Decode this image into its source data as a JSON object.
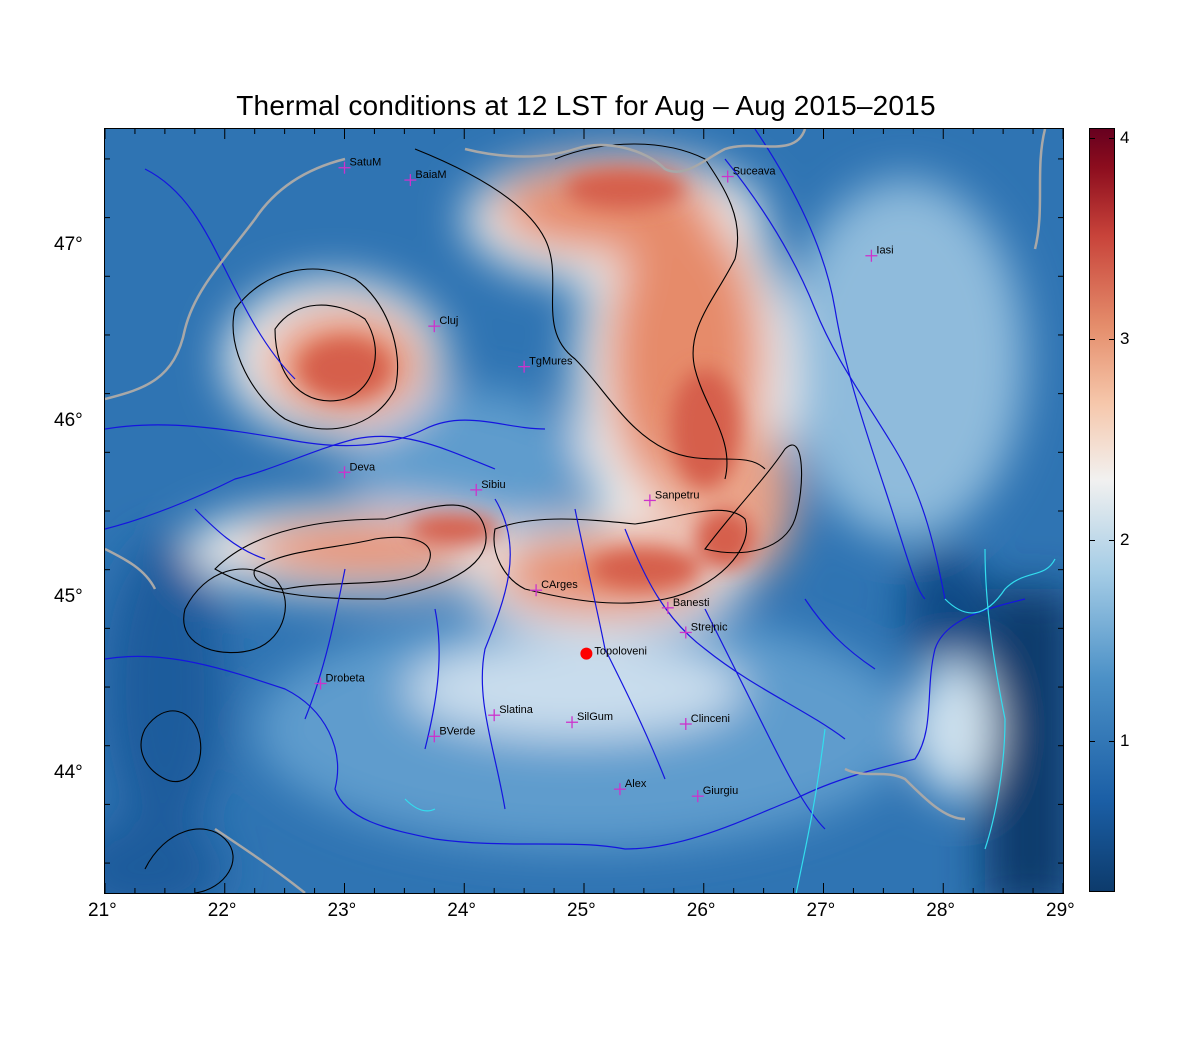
{
  "title": "Thermal conditions at 12 LST for Aug – Aug  2015–2015",
  "x_axis": {
    "labels": [
      "21°",
      "22°",
      "23°",
      "24°",
      "25°",
      "26°",
      "27°",
      "28°",
      "29°"
    ],
    "values": [
      21,
      22,
      23,
      24,
      25,
      26,
      27,
      28,
      29
    ],
    "range": [
      21,
      29
    ]
  },
  "y_axis": {
    "labels": [
      "44°",
      "45°",
      "46°",
      "47°"
    ],
    "values": [
      44,
      45,
      46,
      47
    ],
    "range": [
      43.33,
      47.67
    ]
  },
  "colorbar": {
    "labels": [
      "1",
      "2",
      "3",
      "4"
    ],
    "values": [
      1,
      2,
      3,
      4
    ],
    "range": [
      0.25,
      4.05
    ]
  },
  "colors": {
    "cold": "#1b5fa6",
    "mid": "#f2f1f0",
    "warm": "#e58e6c",
    "hot": "#8c0d1e",
    "station_marker": "#cc33cc",
    "highlight_site": "#ff0000",
    "rivers": "#1515e0",
    "borders": "#a8a8a8",
    "coast": "#33ddee"
  },
  "stations": [
    {
      "name": "SatuM",
      "lon": 23.0,
      "lat": 47.45
    },
    {
      "name": "BaiaM",
      "lon": 23.55,
      "lat": 47.38
    },
    {
      "name": "Suceava",
      "lon": 26.2,
      "lat": 47.4
    },
    {
      "name": "Iasi",
      "lon": 27.4,
      "lat": 46.95
    },
    {
      "name": "Cluj",
      "lon": 23.75,
      "lat": 46.55
    },
    {
      "name": "TgMures",
      "lon": 24.5,
      "lat": 46.32
    },
    {
      "name": "Deva",
      "lon": 23.0,
      "lat": 45.72
    },
    {
      "name": "Sibiu",
      "lon": 24.1,
      "lat": 45.62
    },
    {
      "name": "Sanpetru",
      "lon": 25.55,
      "lat": 45.56
    },
    {
      "name": "CArges",
      "lon": 24.6,
      "lat": 45.05
    },
    {
      "name": "Banesti",
      "lon": 25.7,
      "lat": 44.95
    },
    {
      "name": "Strejnic",
      "lon": 25.85,
      "lat": 44.81
    },
    {
      "name": "Drobeta",
      "lon": 22.8,
      "lat": 44.52
    },
    {
      "name": "Slatina",
      "lon": 24.25,
      "lat": 44.34
    },
    {
      "name": "SilGum",
      "lon": 24.9,
      "lat": 44.3
    },
    {
      "name": "Clinceni",
      "lon": 25.85,
      "lat": 44.29
    },
    {
      "name": "BVerde",
      "lon": 23.75,
      "lat": 44.22
    },
    {
      "name": "Alex",
      "lon": 25.3,
      "lat": 43.92
    },
    {
      "name": "Giurgiu",
      "lon": 25.95,
      "lat": 43.88
    }
  ],
  "highlight_site": {
    "name": "Topoloveni",
    "lon": 25.02,
    "lat": 44.69
  }
}
